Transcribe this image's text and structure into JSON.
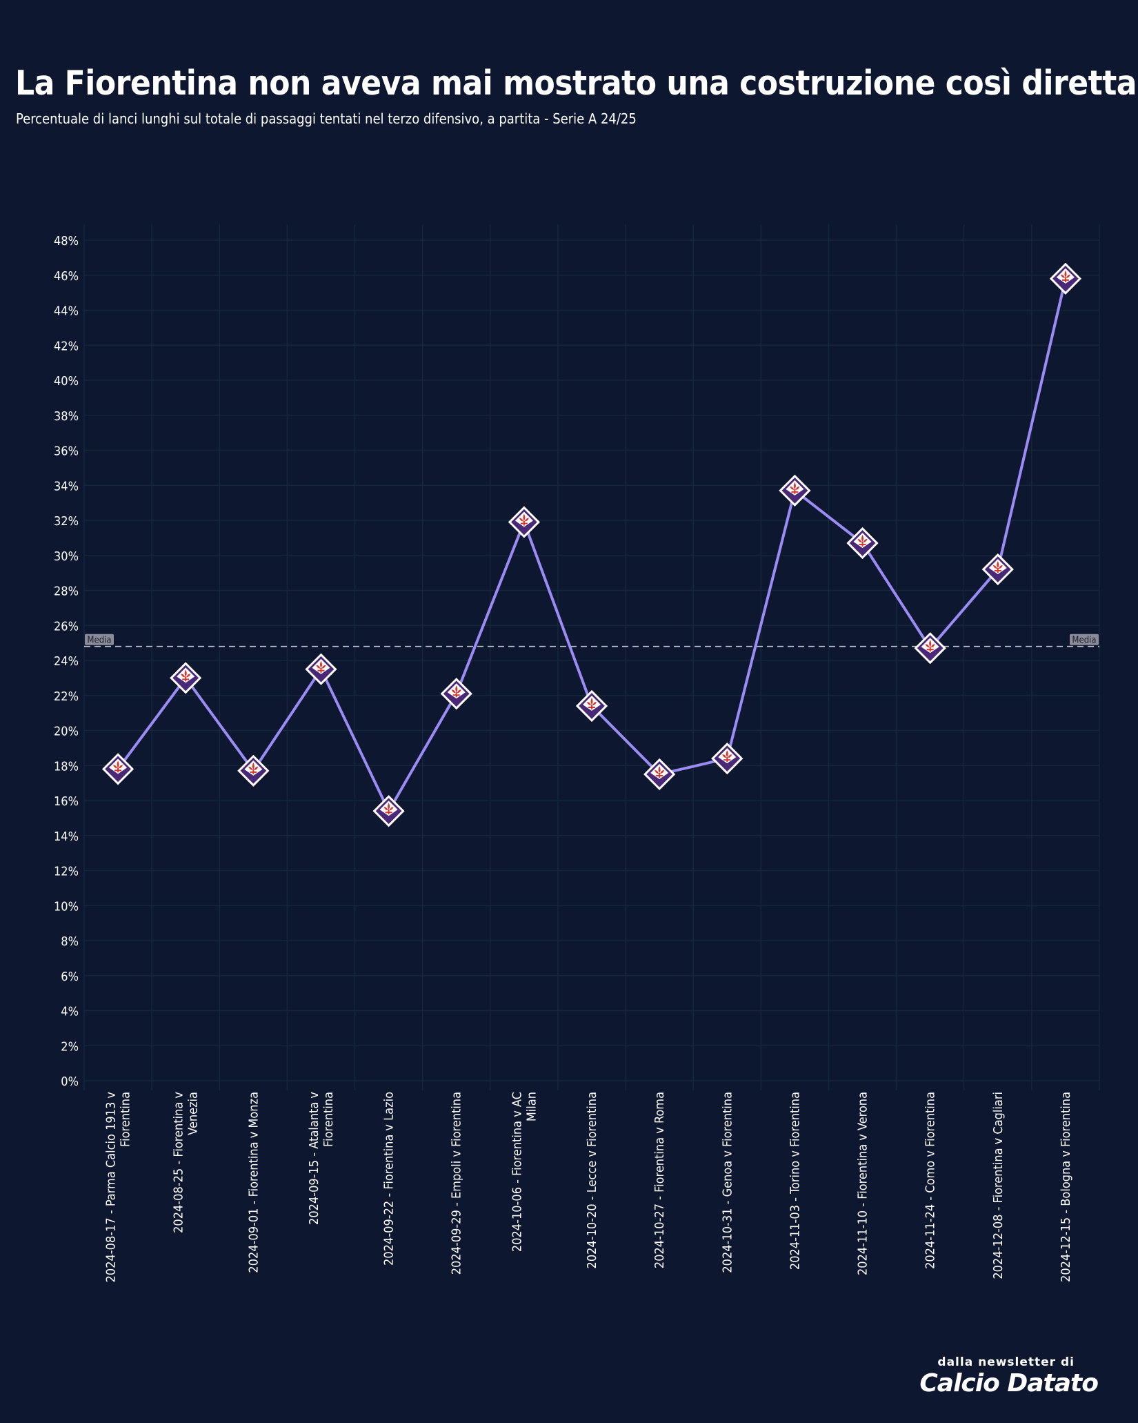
{
  "header": {
    "title": "La Fiorentina non aveva mai mostrato una costruzione così diretta",
    "subtitle": "Percentuale di lanci lunghi sul totale di passaggi tentati nel terzo difensivo, a partita - Serie A 24/25"
  },
  "footer": {
    "small": "dalla newsletter di",
    "brand": "Calcio Datato"
  },
  "colors": {
    "background": "#0d1830",
    "line": "#9b8cf5",
    "marker_fill": "#4a2878",
    "marker_border": "#ffffff",
    "marker_lily": "#d9342b",
    "grid": "#15263a",
    "avg_line": "#c8c8d2"
  },
  "marker_icon": "fiorentina-badge-icon",
  "chart_data": {
    "type": "line",
    "title": "",
    "xlabel": "",
    "ylabel": "",
    "ylim": [
      0,
      48
    ],
    "y_unit": "%",
    "grid": true,
    "yticks": [
      0,
      2,
      4,
      6,
      8,
      10,
      12,
      14,
      16,
      18,
      20,
      22,
      24,
      26,
      28,
      30,
      32,
      34,
      36,
      38,
      40,
      42,
      44,
      46,
      48
    ],
    "ytick_labels": [
      "0%",
      "2%",
      "4%",
      "6%",
      "8%",
      "10%",
      "12%",
      "14%",
      "16%",
      "18%",
      "20%",
      "22%",
      "24%",
      "26%",
      "28%",
      "30%",
      "32%",
      "34%",
      "36%",
      "38%",
      "40%",
      "42%",
      "44%",
      "46%",
      "48%"
    ],
    "categories": [
      [
        "2024-08-17 - Parma Calcio 1913 v",
        "Fiorentina"
      ],
      [
        "2024-08-25 - Fiorentina v",
        "Venezia"
      ],
      [
        "2024-09-01 - Fiorentina v Monza"
      ],
      [
        "2024-09-15 - Atalanta v",
        "Fiorentina"
      ],
      [
        "2024-09-22 - Fiorentina v Lazio"
      ],
      [
        "2024-09-29 - Empoli v Fiorentina"
      ],
      [
        "2024-10-06 - Fiorentina v AC",
        "Milan"
      ],
      [
        "2024-10-20 - Lecce v Fiorentina"
      ],
      [
        "2024-10-27 - Fiorentina v Roma"
      ],
      [
        "2024-10-31 - Genoa v Fiorentina"
      ],
      [
        "2024-11-03 - Torino v Fiorentina"
      ],
      [
        "2024-11-10 - Fiorentina v Verona"
      ],
      [
        "2024-11-24 - Como v Fiorentina"
      ],
      [
        "2024-12-08 - Fiorentina v Cagliari"
      ],
      [
        "2024-12-15 - Bologna v Fiorentina"
      ]
    ],
    "values": [
      17.8,
      23.0,
      17.7,
      23.5,
      15.4,
      22.1,
      31.9,
      21.4,
      17.5,
      18.4,
      33.7,
      30.7,
      24.7,
      29.2,
      45.8
    ],
    "average": {
      "label": "Media",
      "value": 24.8
    }
  }
}
